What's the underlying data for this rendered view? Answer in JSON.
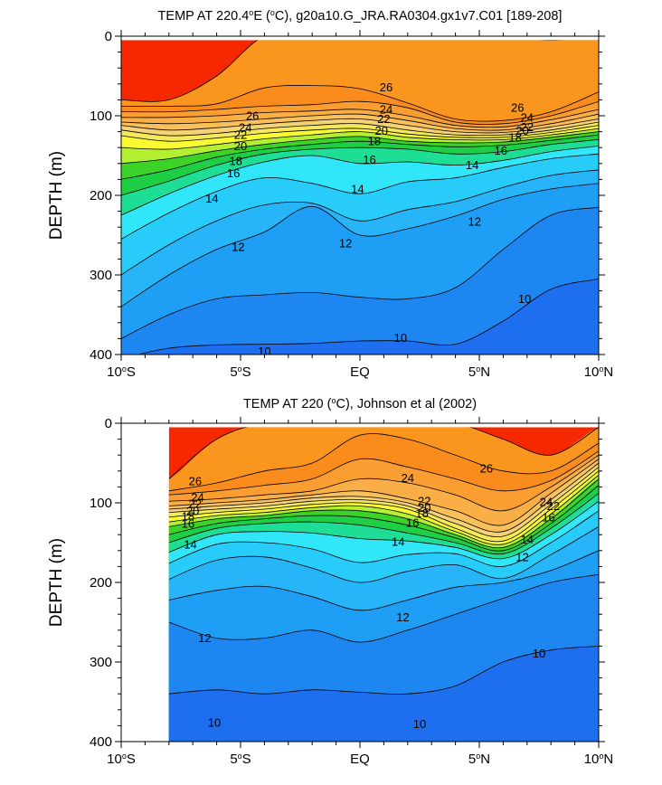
{
  "chart_data": [
    {
      "type": "contour",
      "title": "TEMP AT 220.4°E (°C), g20a10.G_JRA.RA0304.gx1v7.C01 [189-208]",
      "title_parts": {
        "pre": "TEMP AT 220.4",
        "sup": "o",
        "post": "E (",
        "sup2": "o",
        "post2": "C), g20a10.G_JRA.RA0304.gx1v7.C01 [189-208]"
      },
      "xlabel": "",
      "ylabel": "DEPTH (m)",
      "xlim": [
        -10,
        10
      ],
      "ylim": [
        400,
        0
      ],
      "x_ticks": [
        {
          "value": -10,
          "label": "10°S",
          "text": "10",
          "sup": "o",
          "post": "S"
        },
        {
          "value": -5,
          "label": "5°S",
          "text": "5",
          "sup": "o",
          "post": "S"
        },
        {
          "value": 0,
          "label": "EQ",
          "text": "EQ",
          "sup": "",
          "post": ""
        },
        {
          "value": 5,
          "label": "5°N",
          "text": "5",
          "sup": "o",
          "post": "N"
        },
        {
          "value": 10,
          "label": "10°N",
          "text": "10",
          "sup": "o",
          "post": "N"
        }
      ],
      "y_ticks": [
        0,
        100,
        200,
        300,
        400
      ],
      "y_tick_labels": [
        "0",
        "100",
        "200",
        "300",
        "400"
      ],
      "data_x_range": [
        -10,
        10
      ],
      "contour_levels": [
        10,
        11,
        12,
        13,
        14,
        15,
        16,
        17,
        18,
        19,
        20,
        21,
        22,
        23,
        24,
        25,
        26,
        27,
        28
      ],
      "isotherm_depths": {
        "lat": [
          -10,
          -8,
          -6,
          -4,
          -2,
          0,
          2,
          4,
          6,
          8,
          10
        ],
        "d28": [
          null,
          null,
          null,
          null,
          null,
          null,
          null,
          null,
          null,
          null,
          null
        ],
        "d27": [
          80,
          80,
          50,
          0,
          0,
          0,
          0,
          0,
          0,
          5,
          0
        ],
        "d26": [
          88,
          88,
          85,
          65,
          62,
          66,
          84,
          104,
          106,
          95,
          70
        ],
        "d25": [
          95,
          95,
          92,
          88,
          86,
          82,
          90,
          108,
          110,
          100,
          82
        ],
        "d24": [
          102,
          102,
          100,
          96,
          94,
          92,
          100,
          112,
          114,
          105,
          92
        ],
        "d23": [
          108,
          110,
          108,
          104,
          100,
          98,
          106,
          116,
          118,
          110,
          98
        ],
        "d22": [
          112,
          118,
          115,
          110,
          106,
          104,
          112,
          120,
          121,
          114,
          104
        ],
        "d21": [
          118,
          125,
          122,
          116,
          112,
          110,
          118,
          124,
          124,
          118,
          108
        ],
        "d20": [
          125,
          132,
          128,
          122,
          118,
          116,
          123,
          127,
          127,
          121,
          112
        ],
        "d19": [
          140,
          142,
          136,
          129,
          124,
          120,
          127,
          130,
          130,
          124,
          116
        ],
        "d18": [
          160,
          154,
          144,
          136,
          130,
          126,
          132,
          134,
          133,
          127,
          120
        ],
        "d17": [
          180,
          168,
          152,
          142,
          136,
          132,
          136,
          139,
          137,
          131,
          124
        ],
        "d16": [
          200,
          182,
          162,
          148,
          142,
          140,
          142,
          148,
          145,
          136,
          130
        ],
        "d15": [
          225,
          198,
          175,
          158,
          150,
          160,
          158,
          162,
          156,
          145,
          138
        ],
        "d14": [
          255,
          222,
          195,
          178,
          185,
          198,
          183,
          178,
          165,
          154,
          148
        ],
        "d13": [
          300,
          262,
          232,
          212,
          210,
          232,
          218,
          208,
          190,
          175,
          168
        ],
        "d12": [
          340,
          300,
          268,
          246,
          214,
          250,
          242,
          226,
          205,
          192,
          185
        ],
        "d11": [
          380,
          350,
          330,
          325,
          322,
          328,
          330,
          316,
          268,
          225,
          215
        ],
        "d10": [
          405,
          392,
          388,
          387,
          386,
          383,
          383,
          387,
          358,
          318,
          305
        ]
      },
      "colors": {
        "lt10": "#1e6ef0",
        "10_11": "#1e86f0",
        "11_12": "#1e9ef5",
        "12_13": "#28b4f8",
        "13_14": "#28ccfa",
        "14_15": "#32e6fa",
        "15_16": "#1ede96",
        "16_17": "#1ecf46",
        "17_18": "#3cd228",
        "18_19": "#b4f032",
        "19_20": "#fafa32",
        "20_21": "#f5e85a",
        "21_22": "#f5d273",
        "22_23": "#fac05a",
        "23_24": "#faae46",
        "24_25": "#fa9e32",
        "25_26": "#fa8c1e",
        "26_27": "#fa961e",
        "27_28": "#fa4a0a",
        "ge28": "#f52800"
      },
      "line_labels": [
        {
          "text": "26",
          "x": 1.1,
          "y": 64
        },
        {
          "text": "26",
          "x": -4.5,
          "y": 100
        },
        {
          "text": "24",
          "x": -4.8,
          "y": 115
        },
        {
          "text": "22",
          "x": -5.0,
          "y": 124
        },
        {
          "text": "20",
          "x": -5.0,
          "y": 138
        },
        {
          "text": "18",
          "x": -5.2,
          "y": 157
        },
        {
          "text": "16",
          "x": -5.3,
          "y": 172
        },
        {
          "text": "14",
          "x": -6.2,
          "y": 204
        },
        {
          "text": "12",
          "x": -5.1,
          "y": 265
        },
        {
          "text": "24",
          "x": 1.1,
          "y": 92
        },
        {
          "text": "22",
          "x": 1.0,
          "y": 104
        },
        {
          "text": "20",
          "x": 0.9,
          "y": 119
        },
        {
          "text": "18",
          "x": 0.6,
          "y": 132
        },
        {
          "text": "16",
          "x": 0.4,
          "y": 155
        },
        {
          "text": "14",
          "x": -0.1,
          "y": 192
        },
        {
          "text": "12",
          "x": -0.6,
          "y": 260
        },
        {
          "text": "26",
          "x": 6.6,
          "y": 90
        },
        {
          "text": "24",
          "x": 7.0,
          "y": 102
        },
        {
          "text": "22",
          "x": 7.0,
          "y": 114
        },
        {
          "text": "20",
          "x": 6.8,
          "y": 119
        },
        {
          "text": "18",
          "x": 6.5,
          "y": 127
        },
        {
          "text": "16",
          "x": 5.9,
          "y": 144
        },
        {
          "text": "14",
          "x": 4.7,
          "y": 162
        },
        {
          "text": "12",
          "x": 4.8,
          "y": 233
        },
        {
          "text": "10",
          "x": 1.7,
          "y": 379
        },
        {
          "text": "10",
          "x": -4.0,
          "y": 396
        },
        {
          "text": "10",
          "x": 6.9,
          "y": 330
        }
      ]
    },
    {
      "type": "contour",
      "title": "TEMP AT 220 (°C), Johnson et al (2002)",
      "title_parts": {
        "pre": "TEMP AT 220 (",
        "sup": "o",
        "post": "C), Johnson et al (2002)",
        "sup2": "",
        "post2": ""
      },
      "xlabel": "",
      "ylabel": "DEPTH (m)",
      "xlim": [
        -10,
        10
      ],
      "ylim": [
        400,
        0
      ],
      "x_ticks": [
        {
          "value": -10,
          "label": "10°S",
          "text": "10",
          "sup": "o",
          "post": "S"
        },
        {
          "value": -5,
          "label": "5°S",
          "text": "5",
          "sup": "o",
          "post": "S"
        },
        {
          "value": 0,
          "label": "EQ",
          "text": "EQ",
          "sup": "",
          "post": ""
        },
        {
          "value": 5,
          "label": "5°N",
          "text": "5",
          "sup": "o",
          "post": "N"
        },
        {
          "value": 10,
          "label": "10°N",
          "text": "10",
          "sup": "o",
          "post": "N"
        }
      ],
      "y_ticks": [
        0,
        100,
        200,
        300,
        400
      ],
      "y_tick_labels": [
        "0",
        "100",
        "200",
        "300",
        "400"
      ],
      "data_x_range": [
        -8,
        10
      ],
      "contour_levels": [
        10,
        11,
        12,
        13,
        14,
        15,
        16,
        17,
        18,
        19,
        20,
        21,
        22,
        23,
        24,
        25,
        26,
        27,
        28
      ],
      "isotherm_depths": {
        "lat": [
          -8,
          -6,
          -4,
          -2,
          0,
          2,
          4,
          6,
          8,
          10
        ],
        "d28": [
          null,
          null,
          null,
          null,
          null,
          null,
          null,
          null,
          null,
          null
        ],
        "d27": [
          70,
          20,
          0,
          0,
          0,
          0,
          0,
          20,
          40,
          5
        ],
        "d26": [
          85,
          75,
          60,
          50,
          15,
          20,
          40,
          60,
          60,
          25
        ],
        "d25": [
          90,
          85,
          78,
          70,
          45,
          55,
          70,
          85,
          72,
          35
        ],
        "d24": [
          98,
          95,
          90,
          85,
          70,
          75,
          90,
          110,
          80,
          40
        ],
        "d23": [
          104,
          100,
          96,
          90,
          85,
          95,
          110,
          128,
          88,
          45
        ],
        "d22": [
          108,
          104,
          100,
          94,
          92,
          100,
          120,
          136,
          96,
          50
        ],
        "d21": [
          112,
          108,
          104,
          98,
          96,
          104,
          126,
          142,
          102,
          55
        ],
        "d20": [
          118,
          112,
          108,
          102,
          100,
          108,
          132,
          148,
          108,
          60
        ],
        "d19": [
          124,
          116,
          112,
          106,
          104,
          114,
          136,
          152,
          114,
          65
        ],
        "d18": [
          130,
          120,
          116,
          110,
          110,
          120,
          140,
          156,
          120,
          70
        ],
        "d17": [
          140,
          126,
          120,
          116,
          118,
          128,
          144,
          160,
          126,
          78
        ],
        "d16": [
          150,
          132,
          126,
          124,
          128,
          138,
          150,
          164,
          132,
          88
        ],
        "d15": [
          162,
          140,
          136,
          138,
          145,
          148,
          156,
          170,
          140,
          98
        ],
        "d14": [
          176,
          152,
          150,
          158,
          175,
          165,
          164,
          180,
          150,
          110
        ],
        "d13": [
          196,
          172,
          168,
          182,
          200,
          186,
          178,
          195,
          165,
          130
        ],
        "d12": [
          222,
          210,
          205,
          218,
          235,
          222,
          206,
          200,
          185,
          160
        ],
        "d11": [
          250,
          270,
          270,
          260,
          275,
          260,
          240,
          220,
          200,
          190
        ],
        "d10": [
          340,
          335,
          340,
          335,
          338,
          340,
          330,
          300,
          285,
          280
        ]
      },
      "colors": {
        "lt10": "#1e6ef0",
        "10_11": "#1e86f0",
        "11_12": "#1e9ef5",
        "12_13": "#28b4f8",
        "13_14": "#28ccfa",
        "14_15": "#32e6fa",
        "15_16": "#1ede96",
        "16_17": "#1ecf46",
        "17_18": "#3cd228",
        "18_19": "#b4f032",
        "19_20": "#fafa32",
        "20_21": "#f5e85a",
        "21_22": "#f5d273",
        "22_23": "#fac05a",
        "23_24": "#faae46",
        "24_25": "#fa9e32",
        "25_26": "#fa8c1e",
        "26_27": "#fa961e",
        "27_28": "#fa4a0a",
        "ge28": "#f52800"
      },
      "line_labels": [
        {
          "text": "26",
          "x": -6.9,
          "y": 73
        },
        {
          "text": "24",
          "x": -6.8,
          "y": 93
        },
        {
          "text": "22",
          "x": -6.9,
          "y": 101
        },
        {
          "text": "20",
          "x": -7.0,
          "y": 110
        },
        {
          "text": "18",
          "x": -7.2,
          "y": 117
        },
        {
          "text": "16",
          "x": -7.2,
          "y": 126
        },
        {
          "text": "14",
          "x": -7.1,
          "y": 152
        },
        {
          "text": "12",
          "x": -6.5,
          "y": 270
        },
        {
          "text": "24",
          "x": 2.0,
          "y": 69
        },
        {
          "text": "26",
          "x": 5.3,
          "y": 57
        },
        {
          "text": "22",
          "x": 2.7,
          "y": 98
        },
        {
          "text": "20",
          "x": 2.7,
          "y": 106
        },
        {
          "text": "18",
          "x": 2.6,
          "y": 113
        },
        {
          "text": "16",
          "x": 2.2,
          "y": 125
        },
        {
          "text": "14",
          "x": 1.6,
          "y": 149
        },
        {
          "text": "12",
          "x": 1.8,
          "y": 244
        },
        {
          "text": "14",
          "x": 7.0,
          "y": 146
        },
        {
          "text": "12",
          "x": 6.8,
          "y": 168
        },
        {
          "text": "16",
          "x": 7.9,
          "y": 118
        },
        {
          "text": "24",
          "x": 7.8,
          "y": 99
        },
        {
          "text": "22",
          "x": 8.1,
          "y": 104
        },
        {
          "text": "10",
          "x": 7.5,
          "y": 289
        },
        {
          "text": "10",
          "x": -6.1,
          "y": 376
        },
        {
          "text": "10",
          "x": 2.5,
          "y": 378
        }
      ]
    }
  ]
}
